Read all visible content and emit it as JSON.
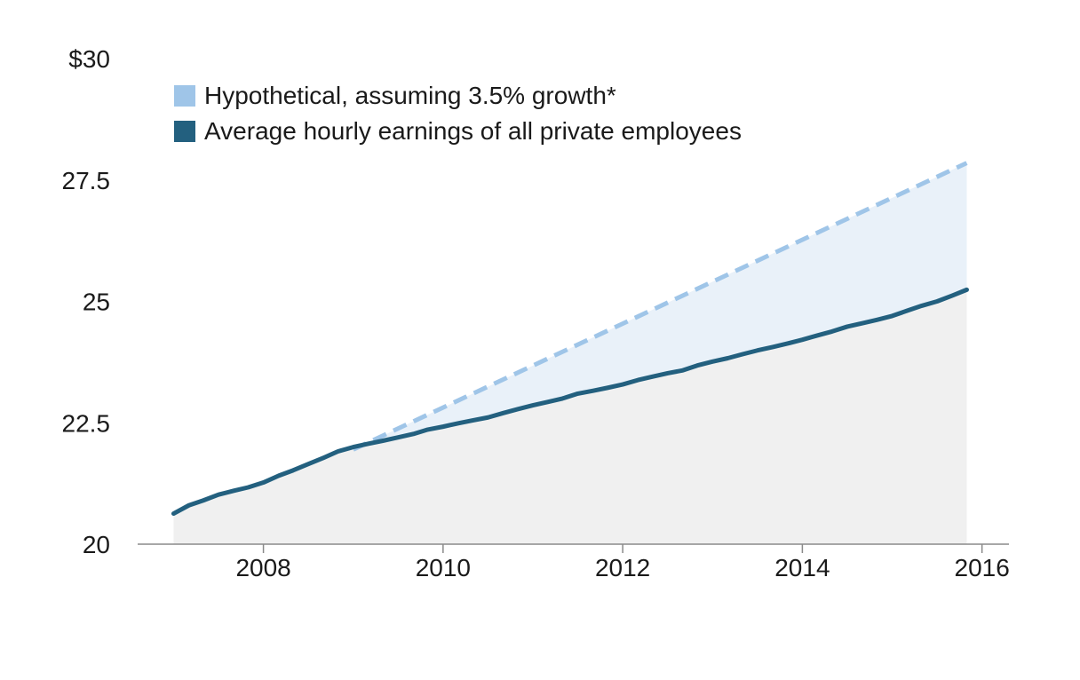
{
  "chart_data": {
    "type": "line",
    "title": "",
    "xlabel": "",
    "ylabel": "",
    "xlim": [
      2006.6,
      2016.3
    ],
    "ylim": [
      20,
      30
    ],
    "y_ticks": [
      {
        "value": 20,
        "label": "20"
      },
      {
        "value": 22.5,
        "label": "22.5"
      },
      {
        "value": 25,
        "label": "25"
      },
      {
        "value": 27.5,
        "label": "27.5"
      },
      {
        "value": 30,
        "label": "$30"
      }
    ],
    "x_ticks": [
      {
        "value": 2008,
        "label": "2008"
      },
      {
        "value": 2010,
        "label": "2010"
      },
      {
        "value": 2012,
        "label": "2012"
      },
      {
        "value": 2014,
        "label": "2014"
      },
      {
        "value": 2016,
        "label": "2016"
      }
    ],
    "grid": false,
    "legend_position": "top-left",
    "colors": {
      "actual": "#23607f",
      "hypothetical": "#9fc5e8",
      "gap_fill": "#e9f1f9",
      "area_fill": "#f0f0f0",
      "axis": "#8a8a8a"
    },
    "series": [
      {
        "key": "hypothetical",
        "name": "Hypothetical, assuming 3.5% growth*",
        "style": "dashed",
        "x": [
          2009.0,
          2015.83
        ],
        "values": [
          21.95,
          27.85
        ]
      },
      {
        "key": "actual",
        "name": "Average hourly earnings of all private employees",
        "style": "solid",
        "x": [
          2007.0,
          2007.17,
          2007.33,
          2007.5,
          2007.67,
          2007.83,
          2008.0,
          2008.17,
          2008.33,
          2008.5,
          2008.67,
          2008.83,
          2009.0,
          2009.17,
          2009.33,
          2009.5,
          2009.67,
          2009.83,
          2010.0,
          2010.17,
          2010.33,
          2010.5,
          2010.67,
          2010.83,
          2011.0,
          2011.17,
          2011.33,
          2011.5,
          2011.67,
          2011.83,
          2012.0,
          2012.17,
          2012.33,
          2012.5,
          2012.67,
          2012.83,
          2013.0,
          2013.17,
          2013.33,
          2013.5,
          2013.67,
          2013.83,
          2014.0,
          2014.17,
          2014.33,
          2014.5,
          2014.67,
          2014.83,
          2015.0,
          2015.17,
          2015.33,
          2015.5,
          2015.67,
          2015.83
        ],
        "values": [
          20.63,
          20.8,
          20.9,
          21.02,
          21.1,
          21.17,
          21.27,
          21.41,
          21.52,
          21.65,
          21.78,
          21.91,
          22.0,
          22.07,
          22.13,
          22.2,
          22.27,
          22.36,
          22.42,
          22.49,
          22.55,
          22.61,
          22.7,
          22.78,
          22.86,
          22.93,
          23.0,
          23.1,
          23.16,
          23.22,
          23.29,
          23.38,
          23.45,
          23.52,
          23.58,
          23.68,
          23.76,
          23.83,
          23.91,
          23.99,
          24.06,
          24.13,
          24.21,
          24.3,
          24.38,
          24.48,
          24.55,
          24.62,
          24.7,
          24.81,
          24.91,
          25.0,
          25.12,
          25.24
        ]
      }
    ]
  }
}
